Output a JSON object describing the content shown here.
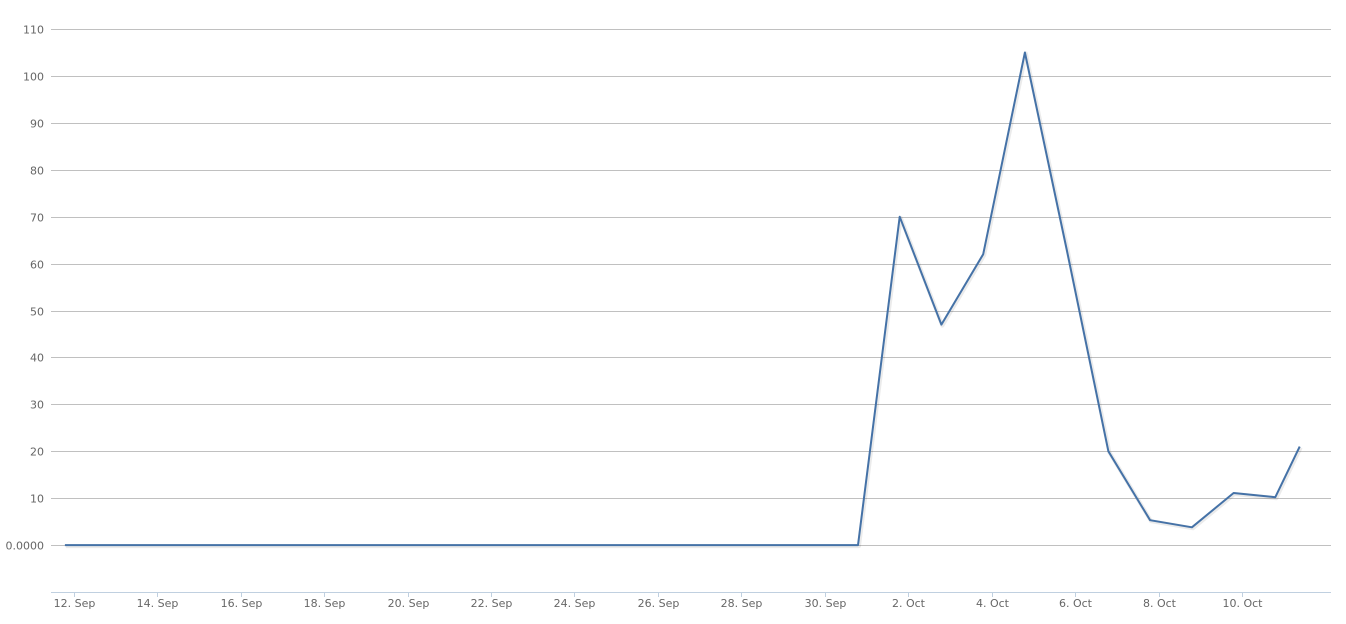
{
  "chart_data": {
    "type": "line",
    "title": "",
    "xlabel": "",
    "ylabel": "",
    "ylim": [
      -10,
      110
    ],
    "xlim": [
      "Sep 11 11:00",
      "Oct 12 03:00"
    ],
    "grid": true,
    "legend": "none",
    "line_color": "#4572a7",
    "grid_color": "#c0c0c0",
    "axis_color": "#c0d0e0",
    "y_ticks": [
      {
        "value": 0,
        "label": "0.0000"
      },
      {
        "value": 10,
        "label": "10"
      },
      {
        "value": 20,
        "label": "20"
      },
      {
        "value": 30,
        "label": "30"
      },
      {
        "value": 40,
        "label": "40"
      },
      {
        "value": 50,
        "label": "50"
      },
      {
        "value": 60,
        "label": "60"
      },
      {
        "value": 70,
        "label": "70"
      },
      {
        "value": 80,
        "label": "80"
      },
      {
        "value": 90,
        "label": "90"
      },
      {
        "value": 100,
        "label": "100"
      },
      {
        "value": 110,
        "label": "110"
      }
    ],
    "x_ticks": [
      {
        "value": "Sep 12 00:00",
        "label": "12. Sep"
      },
      {
        "value": "Sep 14 00:00",
        "label": "14. Sep"
      },
      {
        "value": "Sep 16 00:00",
        "label": "16. Sep"
      },
      {
        "value": "Sep 18 00:00",
        "label": "18. Sep"
      },
      {
        "value": "Sep 20 00:00",
        "label": "20. Sep"
      },
      {
        "value": "Sep 22 00:00",
        "label": "22. Sep"
      },
      {
        "value": "Sep 24 00:00",
        "label": "24. Sep"
      },
      {
        "value": "Sep 26 00:00",
        "label": "26. Sep"
      },
      {
        "value": "Sep 28 00:00",
        "label": "28. Sep"
      },
      {
        "value": "Sep 30 00:00",
        "label": "30. Sep"
      },
      {
        "value": "Oct 2 00:00",
        "label": "2. Oct"
      },
      {
        "value": "Oct 4 00:00",
        "label": "4. Oct"
      },
      {
        "value": "Oct 6 00:00",
        "label": "6. Oct"
      },
      {
        "value": "Oct 8 00:00",
        "label": "8. Oct"
      },
      {
        "value": "Oct 10 00:00",
        "label": "10. Oct"
      }
    ],
    "series": [
      {
        "points": [
          {
            "x": "Sep 11 19:00",
            "y": 0
          },
          {
            "x": "Sep 12 19:00",
            "y": 0
          },
          {
            "x": "Sep 13 19:00",
            "y": 0
          },
          {
            "x": "Sep 14 19:00",
            "y": 0
          },
          {
            "x": "Sep 15 19:00",
            "y": 0
          },
          {
            "x": "Sep 16 19:00",
            "y": 0
          },
          {
            "x": "Sep 17 19:00",
            "y": 0
          },
          {
            "x": "Sep 18 19:00",
            "y": 0
          },
          {
            "x": "Sep 19 19:00",
            "y": 0
          },
          {
            "x": "Sep 20 19:00",
            "y": 0
          },
          {
            "x": "Sep 21 19:00",
            "y": 0
          },
          {
            "x": "Sep 22 19:00",
            "y": 0
          },
          {
            "x": "Sep 23 19:00",
            "y": 0
          },
          {
            "x": "Sep 24 19:00",
            "y": 0
          },
          {
            "x": "Sep 25 19:00",
            "y": 0
          },
          {
            "x": "Sep 26 19:00",
            "y": 0
          },
          {
            "x": "Sep 27 19:00",
            "y": 0
          },
          {
            "x": "Sep 28 19:00",
            "y": 0
          },
          {
            "x": "Sep 29 19:00",
            "y": 0
          },
          {
            "x": "Sep 30 19:00",
            "y": 0
          },
          {
            "x": "Oct 1 19:00",
            "y": 70
          },
          {
            "x": "Oct 2 19:00",
            "y": 47
          },
          {
            "x": "Oct 3 19:00",
            "y": 62
          },
          {
            "x": "Oct 4 19:00",
            "y": 105
          },
          {
            "x": "Oct 5 19:00",
            "y": 63
          },
          {
            "x": "Oct 6 19:00",
            "y": 20
          },
          {
            "x": "Oct 7 19:00",
            "y": 5.3
          },
          {
            "x": "Oct 8 19:00",
            "y": 3.8
          },
          {
            "x": "Oct 9 19:00",
            "y": 11.1
          },
          {
            "x": "Oct 10 19:00",
            "y": 10.2
          },
          {
            "x": "Oct 11 09:00",
            "y": 21
          }
        ]
      }
    ]
  }
}
